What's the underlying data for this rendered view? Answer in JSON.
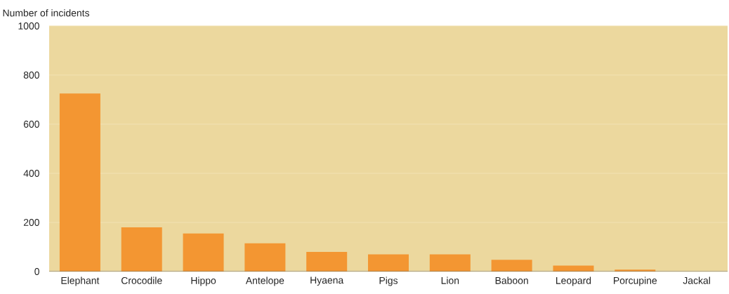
{
  "chart_data": {
    "type": "bar",
    "ylabel": "Number of incidents",
    "categories": [
      "Elephant",
      "Crocodile",
      "Hippo",
      "Antelope",
      "Hyaena",
      "Pigs",
      "Lion",
      "Baboon",
      "Leopard",
      "Porcupine",
      "Jackal"
    ],
    "values": [
      725,
      180,
      155,
      115,
      80,
      70,
      70,
      48,
      24,
      8,
      null
    ],
    "color": "#f39632",
    "ylim": [
      0,
      1000
    ],
    "yticks": [
      0,
      200,
      400,
      600,
      800,
      1000
    ],
    "grid": "y"
  }
}
